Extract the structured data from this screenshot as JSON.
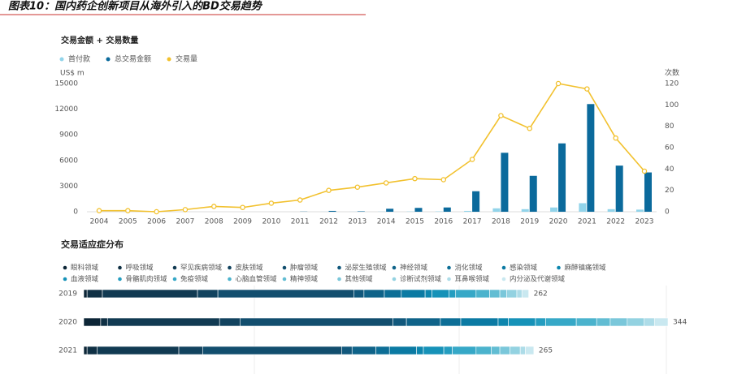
{
  "header": {
    "title": "图表10：国内药企创新项目从海外引入的BD交易趋势"
  },
  "chart_data": [
    {
      "type": "combo",
      "title": "交易金额 + 交易数量",
      "ylabel": "US$ m",
      "y2label": "次数",
      "categories": [
        "2004",
        "2005",
        "2006",
        "2007",
        "2008",
        "2009",
        "2010",
        "2011",
        "2012",
        "2013",
        "2014",
        "2015",
        "2016",
        "2017",
        "2018",
        "2019",
        "2020",
        "2021",
        "2022",
        "2023"
      ],
      "ylim": [
        0,
        15000
      ],
      "yticks": [
        0,
        3000,
        6000,
        9000,
        12000,
        15000
      ],
      "y2lim": [
        0,
        120
      ],
      "y2ticks": [
        0,
        20,
        40,
        60,
        80,
        100,
        120
      ],
      "legend": "top-left",
      "series": [
        {
          "name": "首付款",
          "type": "bar",
          "color": "#92d4ea",
          "values": [
            0,
            0,
            0,
            0,
            0,
            0,
            0,
            0,
            10,
            10,
            20,
            30,
            40,
            100,
            400,
            300,
            500,
            1000,
            300,
            250
          ]
        },
        {
          "name": "总交易金额",
          "type": "bar",
          "color": "#0b6a9c",
          "values": [
            0,
            0,
            0,
            0,
            0,
            0,
            0,
            20,
            100,
            50,
            350,
            450,
            500,
            2400,
            6900,
            4200,
            8000,
            12600,
            5400,
            4600
          ]
        },
        {
          "name": "交易量",
          "type": "line",
          "axis": "y2",
          "color": "#f2c12e",
          "values": [
            1,
            1,
            0,
            2,
            5,
            4,
            8,
            11,
            20,
            23,
            27,
            31,
            30,
            49,
            90,
            78,
            120,
            115,
            69,
            38
          ]
        }
      ]
    },
    {
      "type": "stacked-barh",
      "title": "交易适应症分布",
      "categories": [
        "2019",
        "2020",
        "2021"
      ],
      "totals": [
        262,
        344,
        265
      ],
      "series": [
        {
          "name": "眼科领域",
          "color": "#0c2536",
          "values": [
            2,
            10,
            2
          ]
        },
        {
          "name": "呼吸领域",
          "color": "#0f3044",
          "values": [
            9,
            4,
            6
          ]
        },
        {
          "name": "罕见疾病领域",
          "color": "#113a52",
          "values": [
            56,
            66,
            48
          ]
        },
        {
          "name": "皮肤领域",
          "color": "#12435f",
          "values": [
            12,
            12,
            14
          ]
        },
        {
          "name": "肿瘤领域",
          "color": "#124e6e",
          "values": [
            80,
            90,
            82
          ]
        },
        {
          "name": "泌尿生殖领域",
          "color": "#11587c",
          "values": [
            6,
            8,
            6
          ]
        },
        {
          "name": "神经领域",
          "color": "#0f6389",
          "values": [
            12,
            20,
            14
          ]
        },
        {
          "name": "消化领域",
          "color": "#0d6e96",
          "values": [
            10,
            12,
            8
          ]
        },
        {
          "name": "感染领域",
          "color": "#0b7aa3",
          "values": [
            14,
            22,
            16
          ]
        },
        {
          "name": "麻醉镇痛领域",
          "color": "#0d86ae",
          "values": [
            4,
            6,
            4
          ]
        },
        {
          "name": "血液领域",
          "color": "#1692b8",
          "values": [
            10,
            16,
            12
          ]
        },
        {
          "name": "骨骼肌肉领域",
          "color": "#249dc0",
          "values": [
            4,
            6,
            5
          ]
        },
        {
          "name": "免疫领域",
          "color": "#36a8c7",
          "values": [
            12,
            18,
            14
          ]
        },
        {
          "name": "心脑血管领域",
          "color": "#4bb3cd",
          "values": [
            8,
            12,
            9
          ]
        },
        {
          "name": "精神领域",
          "color": "#62bdd3",
          "values": [
            6,
            8,
            5
          ]
        },
        {
          "name": "其他领域",
          "color": "#7ac7da",
          "values": [
            4,
            10,
            6
          ]
        },
        {
          "name": "诊断试剂领域",
          "color": "#93d2e1",
          "values": [
            6,
            10,
            6
          ]
        },
        {
          "name": "耳鼻喉领域",
          "color": "#addce8",
          "values": [
            3,
            6,
            3
          ]
        },
        {
          "name": "内分泌及代谢领域",
          "color": "#c9e8f0",
          "values": [
            4,
            8,
            5
          ]
        }
      ]
    }
  ]
}
